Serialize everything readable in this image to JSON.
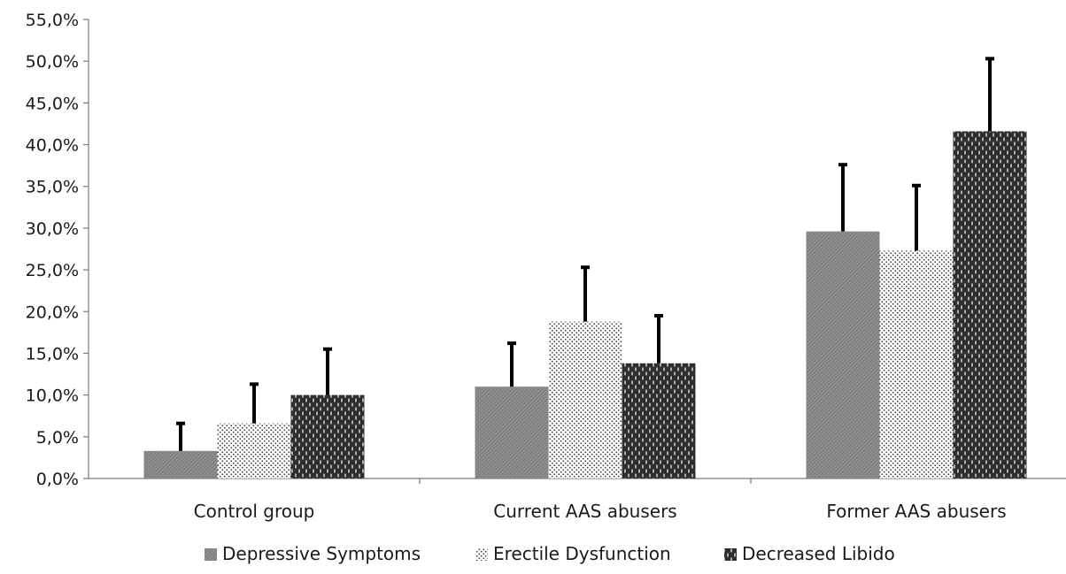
{
  "chart_data": {
    "type": "bar",
    "categories": [
      "Control group",
      "Current AAS abusers",
      "Former AAS abusers"
    ],
    "series": [
      {
        "name": "Depressive Symptoms",
        "values": [
          3.3,
          11.0,
          29.6
        ],
        "errors": [
          3.3,
          5.2,
          8.0
        ],
        "pattern": "diag",
        "color": "#8a8a8a"
      },
      {
        "name": "Erectile Dysfunction",
        "values": [
          6.6,
          18.8,
          27.3
        ],
        "errors": [
          4.7,
          6.5,
          7.8
        ],
        "pattern": "dots",
        "color": "#ffffff"
      },
      {
        "name": "Decreased Libido",
        "values": [
          10.0,
          13.8,
          41.6
        ],
        "errors": [
          5.5,
          5.7,
          8.7
        ],
        "pattern": "dashes",
        "color": "#333333"
      }
    ],
    "y_ticks": [
      "0,0%",
      "5,0%",
      "10,0%",
      "15,0%",
      "20,0%",
      "25,0%",
      "30,0%",
      "35,0%",
      "40,0%",
      "45,0%",
      "50,0%",
      "55,0%"
    ],
    "ylim": [
      0,
      55
    ],
    "y_unit": "%",
    "title": "",
    "xlabel": "",
    "ylabel": "",
    "grid": false,
    "legend_position": "bottom-center",
    "error_bars": "upper"
  }
}
